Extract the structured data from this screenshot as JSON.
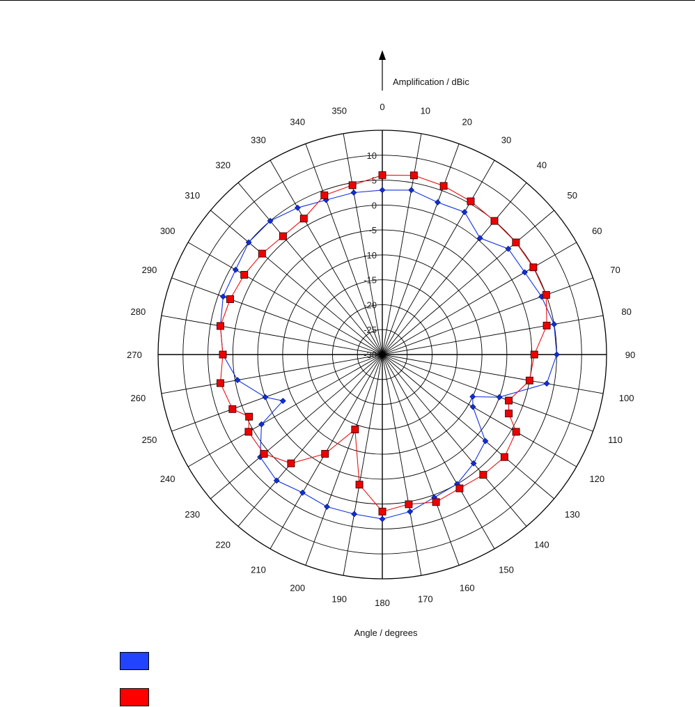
{
  "chart_data": {
    "type": "polar-line",
    "title": "",
    "radial_axis_label": "Amplification / dBic",
    "angular_axis_label": "Angle / degrees",
    "r_range": [
      -30,
      15
    ],
    "r_ticks": [
      -30,
      -25,
      -20,
      -15,
      -10,
      -5,
      0,
      5,
      10
    ],
    "r_tick_labels": [
      "-30",
      "-25",
      "-20",
      "-15",
      "-10",
      "-5",
      "0",
      "5",
      "10"
    ],
    "angle_labels": [
      "0",
      "10",
      "20",
      "30",
      "40",
      "50",
      "60",
      "70",
      "80",
      "90",
      "100",
      "110",
      "120",
      "130",
      "140",
      "150",
      "160",
      "170",
      "180",
      "190",
      "200",
      "210",
      "220",
      "230",
      "240",
      "250",
      "260",
      "270",
      "280",
      "290",
      "300",
      "310",
      "320",
      "330",
      "340",
      "350"
    ],
    "angle_label_values": [
      0,
      10,
      20,
      30,
      40,
      50,
      60,
      70,
      80,
      90,
      100,
      110,
      120,
      130,
      140,
      150,
      160,
      170,
      180,
      190,
      200,
      210,
      220,
      230,
      240,
      250,
      260,
      270,
      280,
      290,
      300,
      310,
      320,
      330,
      340,
      350
    ],
    "grid": true,
    "legend_position": "bottom-left",
    "series": [
      {
        "color": "#1030e0",
        "marker": "diamond",
        "legend_color": "#2244ff",
        "angles": [
          0,
          10,
          20,
          30,
          40,
          50,
          60,
          70,
          80,
          90,
          100,
          110,
          115,
          120,
          130,
          140,
          150,
          160,
          170,
          180,
          190,
          200,
          210,
          220,
          230,
          240,
          245,
          250,
          260,
          270,
          280,
          290,
          300,
          310,
          320,
          330,
          340,
          350
        ],
        "values": [
          3.0,
          3.5,
          2.5,
          3.0,
          0.5,
          3.0,
          3.0,
          4.0,
          5.0,
          5.0,
          3.5,
          -5.0,
          -10.0,
          -9.0,
          -3.0,
          -1.5,
          0.0,
          0.5,
          2.0,
          3.0,
          2.5,
          2.5,
          2.0,
          3.0,
          2.0,
          -2.0,
          -8.0,
          -5.0,
          -0.5,
          2.0,
          3.0,
          4.0,
          4.0,
          5.0,
          5.0,
          4.0,
          3.0,
          3.0
        ]
      },
      {
        "color": "#ee1111",
        "marker": "square",
        "legend_color": "#ff0000",
        "angles": [
          0,
          10,
          20,
          30,
          40,
          50,
          60,
          70,
          80,
          90,
          100,
          110,
          115,
          120,
          130,
          140,
          150,
          160,
          170,
          180,
          190,
          200,
          210,
          220,
          230,
          240,
          245,
          250,
          260,
          270,
          280,
          290,
          300,
          310,
          320,
          330,
          340,
          350
        ],
        "values": [
          6.0,
          6.5,
          6.0,
          5.5,
          5.0,
          5.0,
          5.0,
          5.0,
          3.5,
          0.5,
          0.0,
          -3.0,
          -2.0,
          1.0,
          2.0,
          1.5,
          1.0,
          1.5,
          0.5,
          1.5,
          -3.5,
          -14.0,
          -7.0,
          -1.5,
          1.0,
          1.0,
          -0.5,
          2.0,
          3.0,
          2.0,
          3.0,
          2.5,
          2.0,
          1.5,
          1.0,
          1.5,
          4.0,
          4.5
        ]
      }
    ]
  }
}
